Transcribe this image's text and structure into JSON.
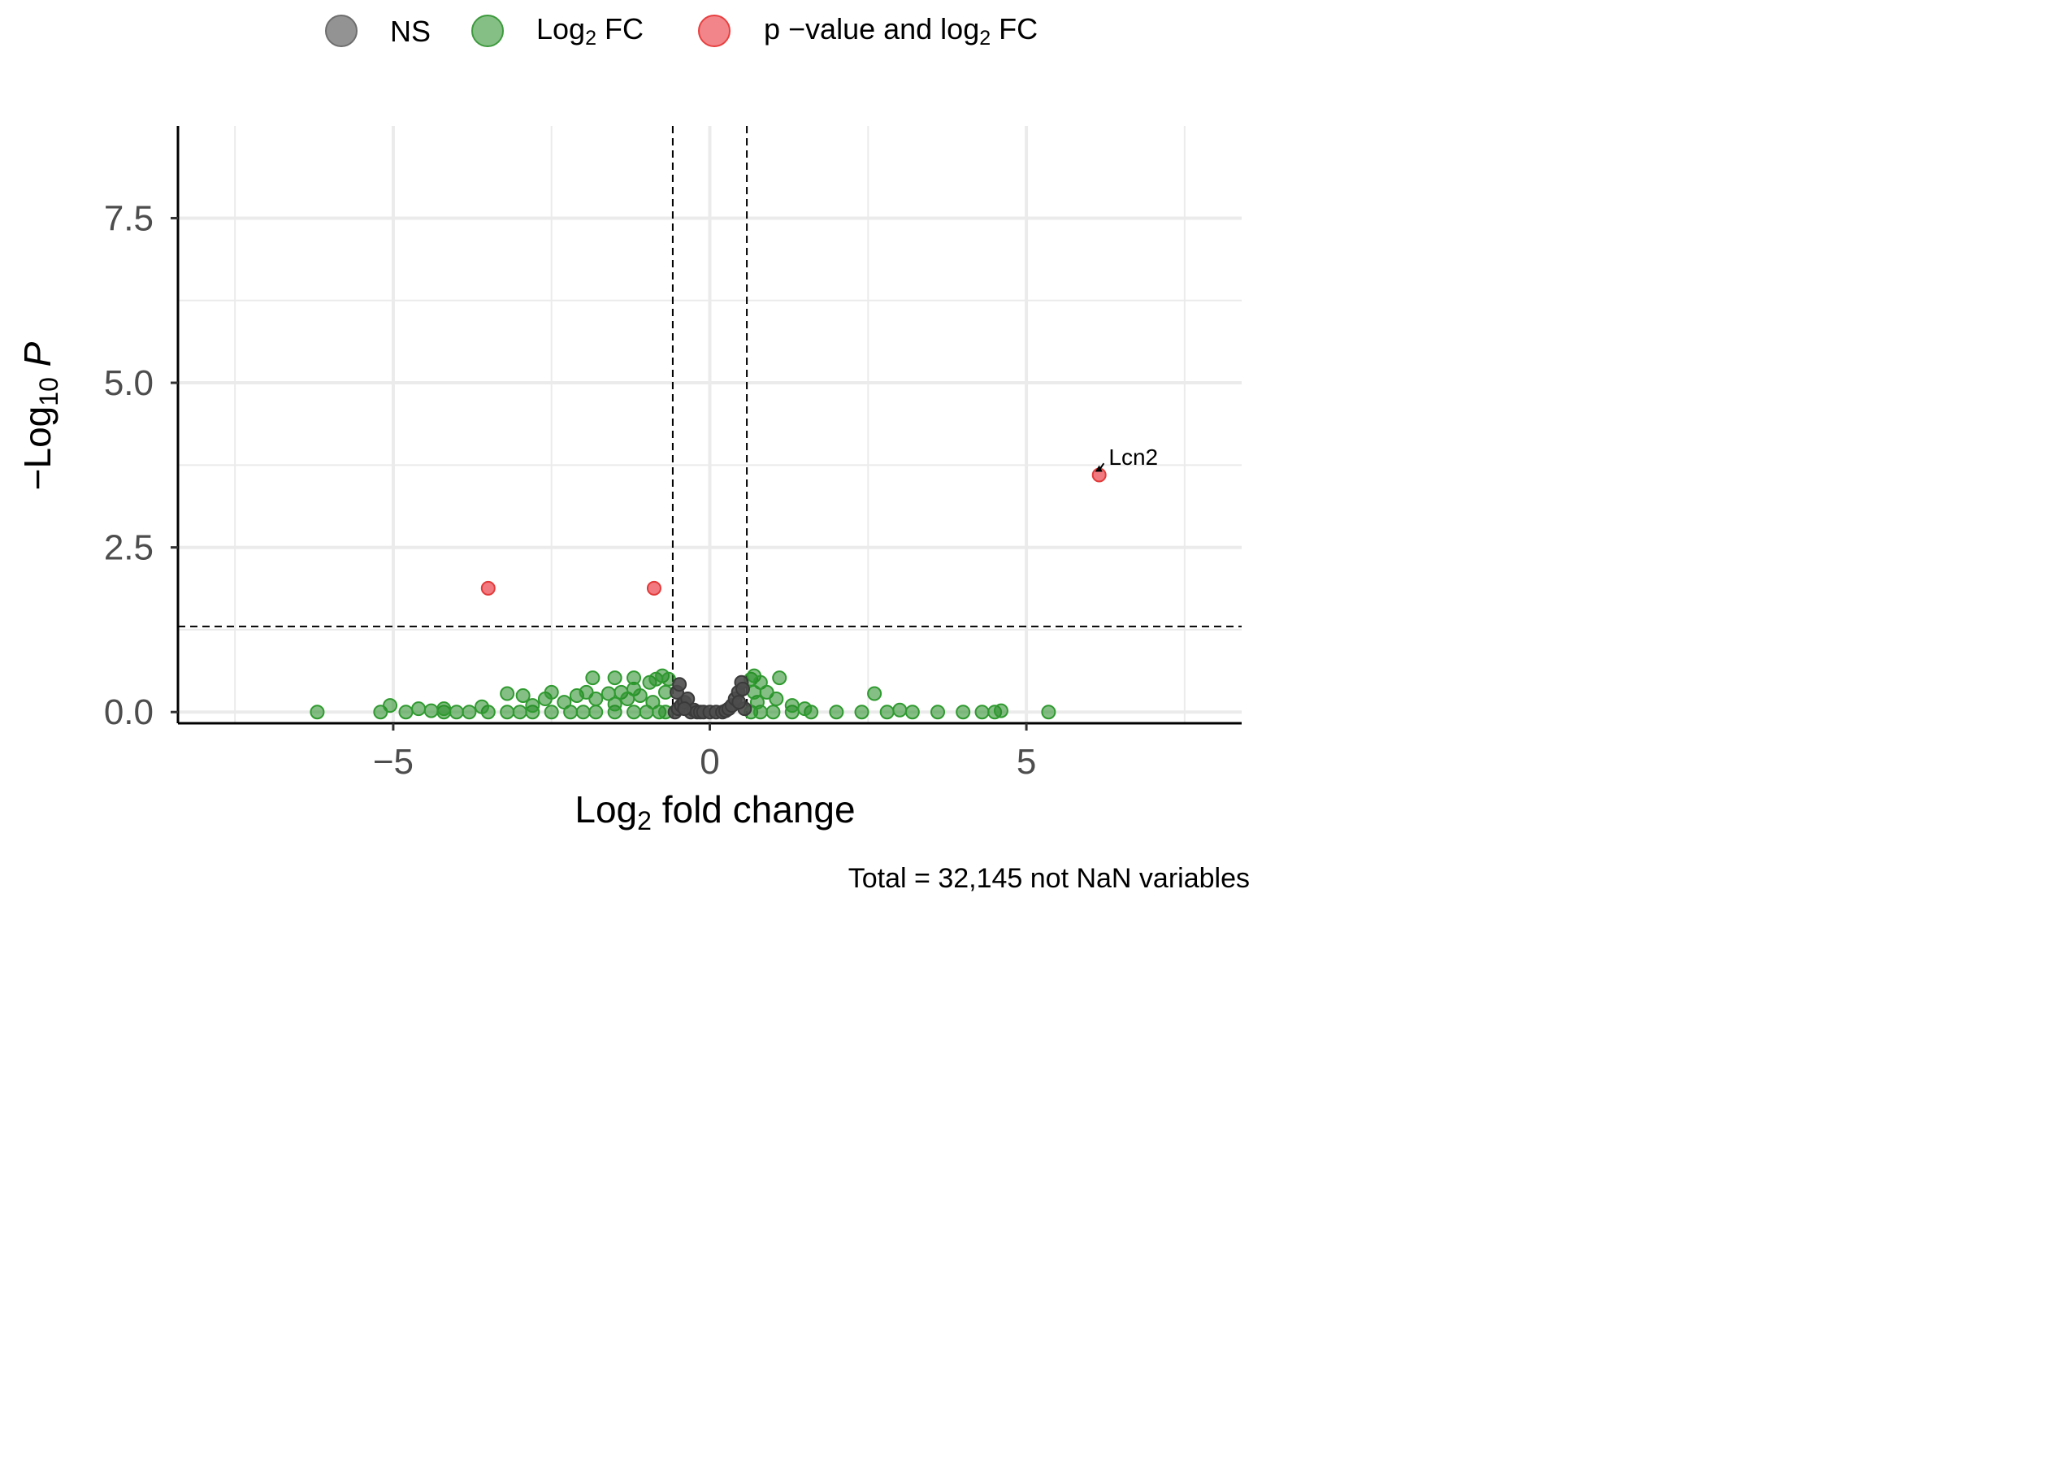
{
  "chart_data": {
    "type": "scatter",
    "title": "",
    "xlabel": "Log2 fold change",
    "xlabel_parts": {
      "base": "Log",
      "sub": "2",
      "rest": " fold change"
    },
    "ylabel": "−Log10 P",
    "ylabel_parts": {
      "base": "−Log",
      "sub": "10",
      "rest": " P"
    },
    "caption": "Total = 32,145 not NaN variables",
    "xlim": [
      -8.4,
      8.4
    ],
    "ylim": [
      -0.17,
      8.9
    ],
    "x_ticks": [
      -5,
      0,
      5
    ],
    "x_tick_labels": [
      "−5",
      "0",
      "5"
    ],
    "y_ticks": [
      0,
      2.5,
      5,
      7.5
    ],
    "y_tick_labels": [
      "0.0",
      "2.5",
      "5.0",
      "7.5"
    ],
    "x_minor_gridlines": [
      -7.5,
      -2.5,
      2.5,
      7.5
    ],
    "y_minor_gridlines": [
      1.25,
      3.75,
      6.25
    ],
    "grid": true,
    "legend_position": "top",
    "fc_cutoff": 0.585,
    "p_cutoff_neglog10": 1.3,
    "colors": {
      "NS": "#4d4d4d",
      "Log2 FC": "#228b22",
      "p-value and log2 FC": "#e8202a",
      "grid": "#ebebeb",
      "cutoff_line": "#000000"
    },
    "legend": [
      {
        "key": "NS",
        "label": "NS",
        "label_parts": {
          "base": "NS",
          "sub": "",
          "rest": ""
        },
        "color": "#808080"
      },
      {
        "key": "Log2 FC",
        "label": "Log2 FC",
        "label_parts": {
          "base": "Log",
          "sub": "2",
          "rest": " FC"
        },
        "color": "#228b22"
      },
      {
        "key": "p-value and log2 FC",
        "label": "p −value and log2 FC",
        "label_parts": {
          "base": "p −value and log",
          "sub": "2",
          "rest": " FC"
        },
        "color": "#e8202a"
      }
    ],
    "series": [
      {
        "category": "NS",
        "points": [
          [
            -0.55,
            0.0
          ],
          [
            -0.5,
            0.05
          ],
          [
            -0.45,
            0.1
          ],
          [
            -0.4,
            0.15
          ],
          [
            -0.35,
            0.2
          ],
          [
            -0.3,
            0.0
          ],
          [
            -0.25,
            0.03
          ],
          [
            -0.2,
            0.0
          ],
          [
            -0.15,
            0.0
          ],
          [
            -0.1,
            0.0
          ],
          [
            0.0,
            0.0
          ],
          [
            0.1,
            0.0
          ],
          [
            0.2,
            0.0
          ],
          [
            0.25,
            0.02
          ],
          [
            0.3,
            0.05
          ],
          [
            0.35,
            0.1
          ],
          [
            0.4,
            0.2
          ],
          [
            0.45,
            0.3
          ],
          [
            0.5,
            0.45
          ],
          [
            0.55,
            0.05
          ],
          [
            -0.52,
            0.3
          ],
          [
            -0.48,
            0.42
          ],
          [
            0.52,
            0.35
          ],
          [
            0.46,
            0.15
          ],
          [
            -0.4,
            0.05
          ]
        ]
      },
      {
        "category": "Log2 FC",
        "points": [
          [
            -6.2,
            0.0
          ],
          [
            -5.2,
            0.0
          ],
          [
            -5.05,
            0.1
          ],
          [
            -4.8,
            0.0
          ],
          [
            -4.6,
            0.05
          ],
          [
            -4.4,
            0.02
          ],
          [
            -4.2,
            0.0
          ],
          [
            -4.0,
            0.0
          ],
          [
            -3.8,
            0.0
          ],
          [
            -3.5,
            0.0
          ],
          [
            -3.2,
            0.0
          ],
          [
            -3.0,
            0.0
          ],
          [
            -2.8,
            0.0
          ],
          [
            -2.5,
            0.0
          ],
          [
            -2.2,
            0.0
          ],
          [
            -2.0,
            0.0
          ],
          [
            -1.8,
            0.0
          ],
          [
            -1.5,
            0.0
          ],
          [
            -1.2,
            0.0
          ],
          [
            -1.0,
            0.0
          ],
          [
            -0.8,
            0.0
          ],
          [
            -0.7,
            0.0
          ],
          [
            -3.2,
            0.28
          ],
          [
            -2.95,
            0.25
          ],
          [
            -2.6,
            0.2
          ],
          [
            -2.5,
            0.3
          ],
          [
            -2.3,
            0.15
          ],
          [
            -2.1,
            0.25
          ],
          [
            -1.95,
            0.3
          ],
          [
            -1.8,
            0.2
          ],
          [
            -1.6,
            0.28
          ],
          [
            -1.4,
            0.3
          ],
          [
            -1.3,
            0.2
          ],
          [
            -1.2,
            0.35
          ],
          [
            -1.1,
            0.25
          ],
          [
            -0.95,
            0.45
          ],
          [
            -0.85,
            0.5
          ],
          [
            -0.75,
            0.55
          ],
          [
            -0.65,
            0.5
          ],
          [
            -0.7,
            0.3
          ],
          [
            -0.9,
            0.15
          ],
          [
            -1.5,
            0.12
          ],
          [
            -1.85,
            0.52
          ],
          [
            -1.5,
            0.52
          ],
          [
            -1.2,
            0.52
          ],
          [
            -4.2,
            0.05
          ],
          [
            -3.6,
            0.08
          ],
          [
            -2.8,
            0.1
          ],
          [
            0.65,
            0.0
          ],
          [
            0.8,
            0.0
          ],
          [
            1.0,
            0.0
          ],
          [
            1.3,
            0.0
          ],
          [
            1.6,
            0.0
          ],
          [
            2.0,
            0.0
          ],
          [
            2.4,
            0.0
          ],
          [
            2.8,
            0.0
          ],
          [
            3.2,
            0.0
          ],
          [
            3.6,
            0.0
          ],
          [
            4.0,
            0.0
          ],
          [
            4.3,
            0.0
          ],
          [
            4.5,
            0.0
          ],
          [
            4.6,
            0.02
          ],
          [
            0.65,
            0.5
          ],
          [
            0.7,
            0.55
          ],
          [
            0.8,
            0.45
          ],
          [
            0.9,
            0.3
          ],
          [
            1.05,
            0.2
          ],
          [
            1.1,
            0.52
          ],
          [
            1.3,
            0.1
          ],
          [
            2.6,
            0.28
          ],
          [
            0.75,
            0.15
          ],
          [
            0.7,
            0.3
          ],
          [
            1.5,
            0.05
          ],
          [
            3.0,
            0.03
          ],
          [
            5.35,
            0.0
          ]
        ]
      },
      {
        "category": "p-value and log2 FC",
        "points": [
          [
            -3.5,
            1.88
          ],
          [
            -0.88,
            1.88
          ],
          [
            6.15,
            3.6
          ]
        ]
      }
    ],
    "annotations": [
      {
        "text": "Lcn2",
        "x": 6.15,
        "y": 3.6,
        "label_x": 6.3,
        "label_y": 3.85
      }
    ]
  }
}
